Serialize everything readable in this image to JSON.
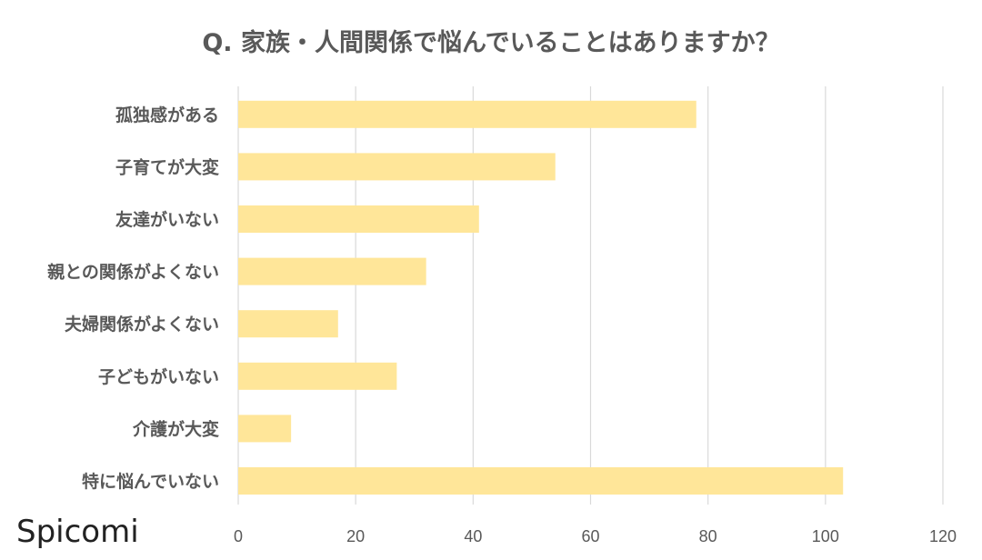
{
  "chart_data": {
    "type": "bar",
    "orientation": "horizontal",
    "title": "Q. 家族・人間関係で悩んでいることはありますか？",
    "categories": [
      "孤独感がある",
      "子育てが大変",
      "友達がいない",
      "親との関係がよくない",
      "夫婦関係がよくない",
      "子どもがいない",
      "介護が大変",
      "特に悩んでいない"
    ],
    "values": [
      78,
      54,
      41,
      32,
      17,
      27,
      9,
      103
    ],
    "xlim": [
      0,
      120
    ],
    "xticks": [
      "0",
      "20",
      "40",
      "60",
      "80",
      "100",
      "120"
    ],
    "grid": true,
    "bar_color": "#FFE699",
    "grid_color": "#D9D9D9"
  },
  "brand": {
    "logo_text": "Spicomi"
  }
}
